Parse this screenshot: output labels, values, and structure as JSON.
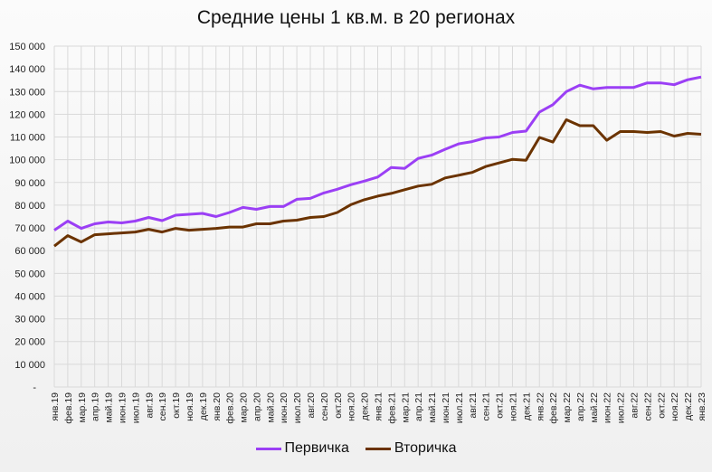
{
  "chart_data": {
    "type": "line",
    "title": "Средние цены 1 кв.м. в 20 регионах",
    "xlabel": "",
    "ylabel": "",
    "ylim": [
      0,
      150000
    ],
    "yticks": [
      "-",
      "10 000",
      "20 000",
      "30 000",
      "40 000",
      "50 000",
      "60 000",
      "70 000",
      "80 000",
      "90 000",
      "100 000",
      "110 000",
      "120 000",
      "130 000",
      "140 000",
      "150 000"
    ],
    "grid": true,
    "legend_position": "bottom",
    "categories": [
      "янв.19",
      "фев.19",
      "мар.19",
      "апр.19",
      "май.19",
      "июн.19",
      "июл.19",
      "авг.19",
      "сен.19",
      "окт.19",
      "ноя.19",
      "дек.19",
      "янв.20",
      "фев.20",
      "мар.20",
      "апр.20",
      "май.20",
      "июн.20",
      "июл.20",
      "авг.20",
      "сен.20",
      "окт.20",
      "ноя.20",
      "дек.20",
      "янв.21",
      "фев.21",
      "мар.21",
      "апр.21",
      "май.21",
      "июн.21",
      "июл.21",
      "авг.21",
      "сен.21",
      "окт.21",
      "ноя.21",
      "дек.21",
      "янв.22",
      "фев.22",
      "мар.22",
      "апр.22",
      "май.22",
      "июн.22",
      "июл.22",
      "авг.22",
      "сен.22",
      "окт.22",
      "ноя.22",
      "дек.22",
      "янв.23"
    ],
    "series": [
      {
        "name": "Первичка",
        "color": "#9b3ff5",
        "values": [
          69000,
          73000,
          69800,
          71800,
          72600,
          72200,
          73000,
          74600,
          73200,
          75600,
          76000,
          76400,
          75000,
          76800,
          79000,
          78200,
          79400,
          79400,
          82600,
          83000,
          85400,
          87000,
          89000,
          90600,
          92400,
          96600,
          96200,
          100600,
          102000,
          104600,
          107000,
          108000,
          109600,
          110000,
          112000,
          112600,
          121000,
          124200,
          130000,
          132800,
          131200,
          131800,
          131800,
          131800,
          133800,
          133800,
          133000,
          135200,
          136400
        ]
      },
      {
        "name": "Вторичка",
        "color": "#6b3300",
        "values": [
          62000,
          66600,
          63800,
          67000,
          67400,
          67800,
          68200,
          69400,
          68200,
          69800,
          69000,
          69400,
          69800,
          70400,
          70400,
          71800,
          71800,
          73000,
          73400,
          74600,
          75000,
          76800,
          80200,
          82400,
          84000,
          85200,
          86800,
          88400,
          89200,
          92000,
          93200,
          94400,
          97000,
          98600,
          100200,
          99800,
          109800,
          107800,
          117600,
          115000,
          115000,
          108600,
          112400,
          112400,
          112000,
          112400,
          110400,
          111600,
          111200
        ]
      }
    ]
  }
}
